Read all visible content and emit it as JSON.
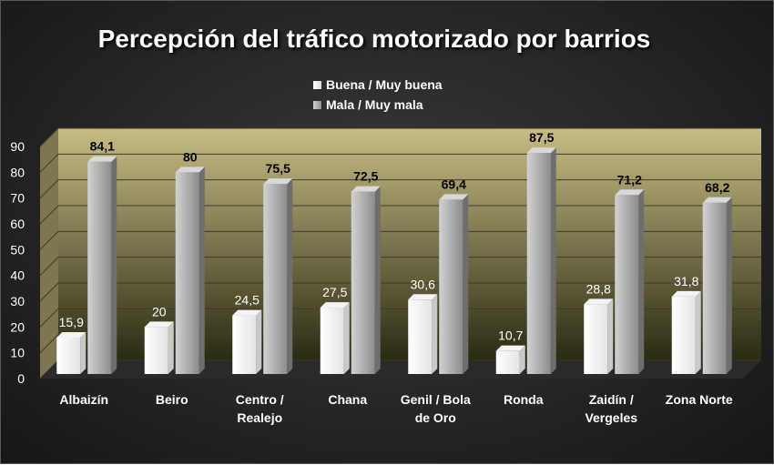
{
  "chart_data": {
    "type": "bar",
    "title": "Percepción del tráfico motorizado por barrios",
    "categories": [
      [
        "Albaizín"
      ],
      [
        "Beiro"
      ],
      [
        "Centro /",
        "Realejo"
      ],
      [
        "Chana"
      ],
      [
        "Genil / Bola",
        "de Oro"
      ],
      [
        "Ronda"
      ],
      [
        "Zaidín /",
        "Vergeles"
      ],
      [
        "Zona Norte"
      ]
    ],
    "series": [
      {
        "name": "Buena / Muy buena",
        "values": [
          15.9,
          20,
          24.5,
          27.5,
          30.6,
          10.7,
          28.8,
          31.8
        ],
        "value_labels": [
          "15,9",
          "20",
          "24,5",
          "27,5",
          "30,6",
          "10,7",
          "28,8",
          "31,8"
        ],
        "color": "#ffffff"
      },
      {
        "name": "Mala / Muy mala",
        "values": [
          84.1,
          80,
          75.5,
          72.5,
          69.4,
          87.5,
          71.2,
          68.2
        ],
        "value_labels": [
          "84,1",
          "80",
          "75,5",
          "72,5",
          "69,4",
          "87,5",
          "71,2",
          "68,2"
        ],
        "color": "#b4b4b4"
      }
    ],
    "ylim": [
      0,
      90
    ],
    "yticks": [
      "0",
      "10",
      "20",
      "30",
      "40",
      "50",
      "60",
      "70",
      "80",
      "90"
    ],
    "grid": true,
    "legend_position": "top",
    "wall_color": "#c8bd85",
    "floor_color": "#2a2a2a"
  }
}
